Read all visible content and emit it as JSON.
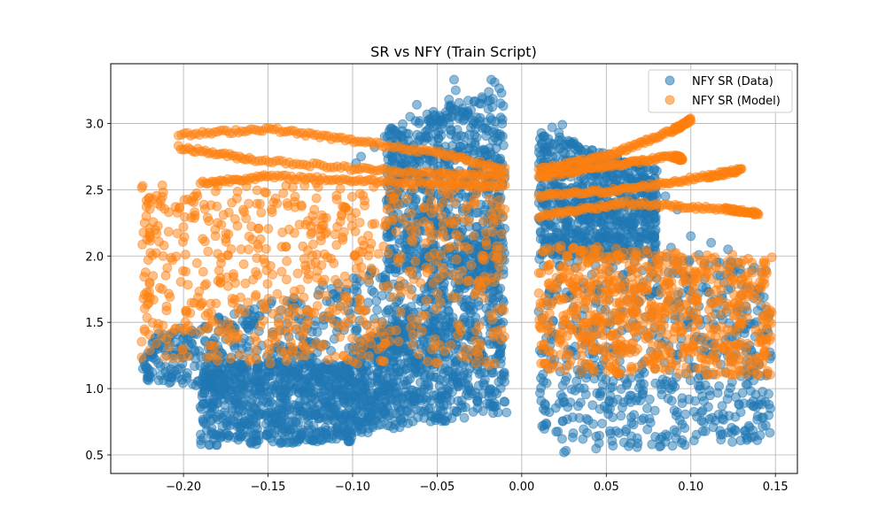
{
  "chart_data": {
    "type": "scatter",
    "title": "SR vs NFY (Train Script)",
    "xlabel": "",
    "ylabel": "",
    "xlim": [
      -0.243,
      0.163
    ],
    "ylim": [
      0.36,
      3.45
    ],
    "xticks": [
      -0.2,
      -0.15,
      -0.1,
      -0.05,
      0.0,
      0.05,
      0.1,
      0.15
    ],
    "xtick_labels": [
      "−0.20",
      "−0.15",
      "−0.10",
      "−0.05",
      "0.00",
      "0.05",
      "0.10",
      "0.15"
    ],
    "yticks": [
      0.5,
      1.0,
      1.5,
      2.0,
      2.5,
      3.0
    ],
    "ytick_labels": [
      "0.5",
      "1.0",
      "1.5",
      "2.0",
      "2.5",
      "3.0"
    ],
    "grid": true,
    "legend_position": "top-right",
    "series": [
      {
        "name": "NFY SR (Data)",
        "color": "#1f77b4",
        "regions": [
          {
            "x": [
              -0.224,
              -0.01
            ],
            "y_bottom": [
              1.05,
              0.82
            ],
            "y_top": [
              1.38,
              2.2
            ]
          },
          {
            "x": [
              -0.19,
              -0.1
            ],
            "y_bottom": [
              0.57,
              0.6
            ],
            "y_top": [
              1.2,
              1.2
            ]
          },
          {
            "x": [
              -0.1,
              -0.01
            ],
            "y_bottom": [
              0.65,
              0.82
            ],
            "y_top": [
              1.25,
              2.3
            ]
          },
          {
            "x": [
              -0.08,
              -0.01
            ],
            "y_bottom": [
              1.9,
              1.9
            ],
            "y_top": [
              2.95,
              3.3
            ]
          },
          {
            "x": [
              0.01,
              0.148
            ],
            "y_bottom": [
              0.5,
              0.6
            ],
            "y_top": [
              2.3,
              1.9
            ]
          },
          {
            "x": [
              0.01,
              0.08
            ],
            "y_bottom": [
              2.0,
              2.0
            ],
            "y_top": [
              2.95,
              2.65
            ]
          }
        ],
        "scatter_points": [
          [
            -0.04,
            3.33
          ],
          [
            -0.039,
            3.25
          ],
          [
            -0.018,
            3.33
          ],
          [
            -0.016,
            3.31
          ],
          [
            -0.062,
            3.14
          ],
          [
            -0.066,
            3.05
          ],
          [
            -0.043,
            3.18
          ],
          [
            -0.025,
            3.15
          ],
          [
            -0.05,
            2.99
          ],
          [
            -0.03,
            3.1
          ],
          [
            -0.081,
            2.9
          ],
          [
            -0.075,
            2.79
          ],
          [
            -0.095,
            2.75
          ],
          [
            -0.098,
            2.7
          ],
          [
            -0.087,
            2.82
          ],
          [
            -0.07,
            2.85
          ],
          [
            -0.06,
            2.9
          ],
          [
            -0.055,
            2.75
          ],
          [
            0.013,
            2.9
          ],
          [
            0.018,
            2.97
          ],
          [
            0.022,
            2.93
          ],
          [
            0.03,
            2.85
          ],
          [
            0.024,
            2.99
          ],
          [
            0.076,
            2.57
          ],
          [
            0.092,
            2.35
          ],
          [
            0.1,
            2.15
          ],
          [
            0.085,
            2.45
          ],
          [
            0.112,
            2.1
          ],
          [
            0.122,
            2.05
          ],
          [
            -0.22,
            1.1
          ],
          [
            -0.224,
            1.15
          ],
          [
            -0.215,
            1.3
          ],
          [
            -0.205,
            1.35
          ],
          [
            -0.21,
            1.25
          ],
          [
            -0.157,
            0.58
          ],
          [
            -0.147,
            0.6
          ],
          [
            0.146,
            0.96
          ],
          [
            0.144,
            0.9
          ],
          [
            0.147,
            0.85
          ],
          [
            0.14,
            1.75
          ],
          [
            0.143,
            1.55
          ],
          [
            0.145,
            1.45
          ],
          [
            0.13,
            1.7
          ],
          [
            -0.009,
            0.82
          ],
          [
            -0.01,
            0.9
          ]
        ]
      },
      {
        "name": "NFY SR (Model)",
        "color": "#ff7f0e",
        "curves": [
          {
            "x": [
              -0.203,
              -0.15,
              -0.1,
              -0.05,
              -0.01
            ],
            "y": [
              2.91,
              2.96,
              2.87,
              2.78,
              2.65
            ]
          },
          {
            "x": [
              -0.203,
              -0.16,
              -0.1,
              -0.05,
              -0.01
            ],
            "y": [
              2.82,
              2.73,
              2.66,
              2.62,
              2.6
            ]
          },
          {
            "x": [
              -0.19,
              -0.15,
              -0.1,
              -0.05,
              -0.01
            ],
            "y": [
              2.55,
              2.6,
              2.57,
              2.55,
              2.52
            ]
          },
          {
            "x": [
              0.01,
              0.05,
              0.09,
              0.1
            ],
            "y": [
              2.65,
              2.75,
              2.95,
              3.03
            ]
          },
          {
            "x": [
              0.01,
              0.05,
              0.09,
              0.095
            ],
            "y": [
              2.6,
              2.68,
              2.75,
              2.73
            ]
          },
          {
            "x": [
              0.01,
              0.06,
              0.11,
              0.13
            ],
            "y": [
              2.45,
              2.5,
              2.6,
              2.65
            ]
          },
          {
            "x": [
              0.01,
              0.06,
              0.12,
              0.14
            ],
            "y": [
              2.3,
              2.4,
              2.35,
              2.32
            ]
          }
        ],
        "regions": [
          {
            "x": [
              -0.225,
              -0.01
            ],
            "y_bottom": [
              1.2,
              1.17
            ],
            "y_top": [
              2.55,
              2.55
            ]
          },
          {
            "x": [
              0.01,
              0.148
            ],
            "y_bottom": [
              1.12,
              1.1
            ],
            "y_top": [
              2.1,
              2.0
            ]
          }
        ],
        "scatter_points": [
          [
            -0.223,
            2.25
          ],
          [
            -0.22,
            2.15
          ],
          [
            -0.222,
            2.3
          ],
          [
            -0.218,
            1.85
          ],
          [
            -0.22,
            1.8
          ],
          [
            -0.21,
            1.62
          ],
          [
            -0.205,
            1.45
          ],
          [
            -0.2,
            1.3
          ],
          [
            0.145,
            1.25
          ],
          [
            0.14,
            1.35
          ],
          [
            0.142,
            1.9
          ],
          [
            0.143,
            1.55
          ],
          [
            0.11,
            1.1
          ],
          [
            0.113,
            1.12
          ]
        ]
      }
    ]
  },
  "legend": {
    "items": [
      {
        "label": "NFY SR (Data)",
        "color": "#1f77b4"
      },
      {
        "label": "NFY SR (Model)",
        "color": "#ff7f0e"
      }
    ]
  }
}
